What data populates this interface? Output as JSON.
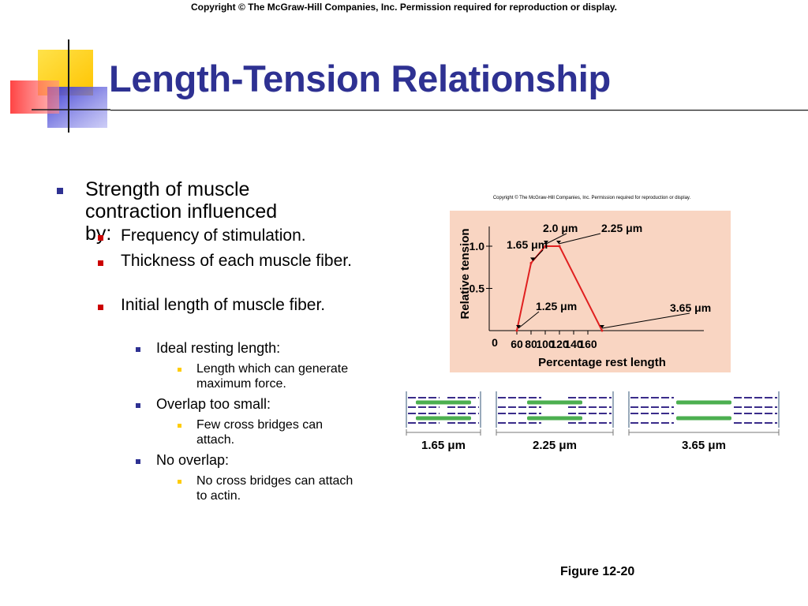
{
  "slide": {
    "copyright": "Copyright © The McGraw-Hill Companies, Inc. Permission required for reproduction or display.",
    "title": "Length-Tension Relationship",
    "figure_label": "Figure 12-20",
    "colors": {
      "title": "#2e3192",
      "bullet_l1": "#2e3192",
      "bullet_l2": "#cc0000",
      "bullet_l3": "#2e3192",
      "bullet_l4": "#ffcc00",
      "chart_bg": "#f9d5c2",
      "line": "#e02020"
    }
  },
  "bullets": {
    "b1": "Strength of muscle contraction influenced by:",
    "b1_1": "Frequency of stimulation.",
    "b1_2": "Thickness of each muscle fiber.",
    "b1_3": "Initial length of muscle fiber.",
    "b1_3_1": "Ideal resting length:",
    "b1_3_1_1": "Length which can generate maximum force.",
    "b1_3_2": "Overlap too small:",
    "b1_3_2_1": "Few cross bridges can attach.",
    "b1_3_3": "No overlap:",
    "b1_3_3_1": "No cross bridges can attach to actin."
  },
  "figure": {
    "copyright": "Copyright © The McGraw-Hill Companies, Inc. Permission required for reproduction or display.",
    "sarcomere_labels": [
      "1.65 μm",
      "2.25 μm",
      "3.65 μm"
    ]
  },
  "chart_data": {
    "type": "line",
    "xlabel": "Percentage rest length",
    "ylabel": "Relative tension",
    "x_ticks": [
      "0",
      "60",
      "80",
      "100",
      "120",
      "140",
      "160"
    ],
    "y_ticks": [
      "0.5",
      "1.0"
    ],
    "x": [
      60,
      80,
      100,
      120,
      180
    ],
    "y": [
      0,
      0.8,
      1.0,
      1.0,
      0
    ],
    "annotations": [
      "1.25 μm",
      "1.65 μm",
      "2.0 μm",
      "2.25 μm",
      "3.65 μm"
    ]
  }
}
